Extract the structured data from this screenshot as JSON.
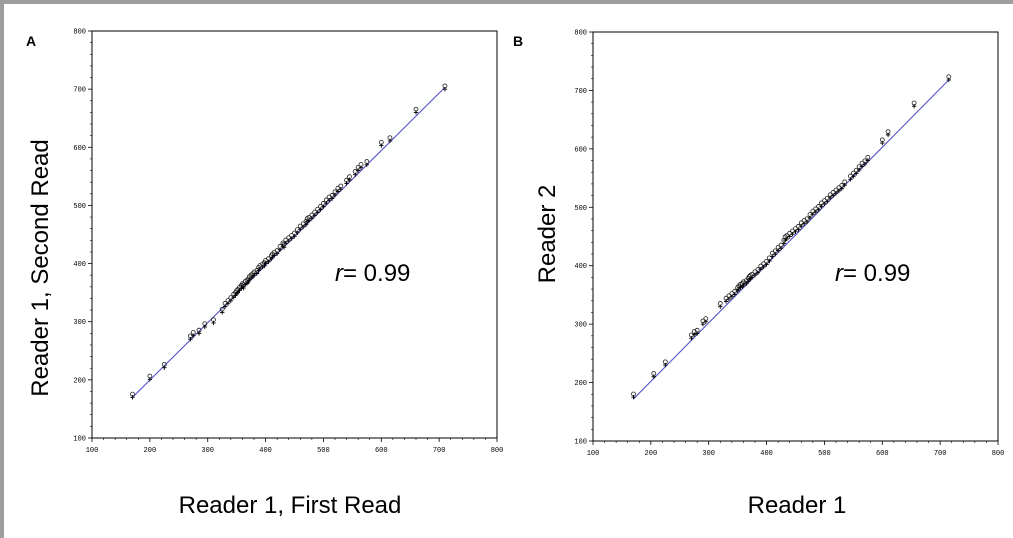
{
  "chart_data": [
    {
      "panel": "A",
      "type": "scatter",
      "xlabel": "Reader 1, First Read",
      "ylabel": "Reader 1, Second Read",
      "xlim": [
        100,
        800
      ],
      "ylim": [
        100,
        800
      ],
      "xticks": [
        100,
        200,
        300,
        400,
        500,
        600,
        700,
        800
      ],
      "yticks": [
        100,
        200,
        300,
        400,
        500,
        600,
        700,
        800
      ],
      "annotation": {
        "r_symbol": "r",
        "r_rest": "= 0.99"
      },
      "fit_line": {
        "x": [
          170,
          710
        ],
        "y": [
          170,
          703
        ]
      },
      "points": {
        "x": [
          170,
          200,
          225,
          270,
          275,
          285,
          295,
          310,
          325,
          330,
          335,
          340,
          345,
          348,
          350,
          352,
          355,
          358,
          360,
          362,
          365,
          368,
          370,
          372,
          375,
          378,
          380,
          385,
          388,
          390,
          395,
          398,
          400,
          405,
          410,
          412,
          415,
          420,
          425,
          430,
          432,
          435,
          440,
          445,
          450,
          455,
          460,
          465,
          470,
          472,
          475,
          480,
          485,
          490,
          495,
          500,
          505,
          510,
          515,
          520,
          525,
          530,
          540,
          545,
          555,
          560,
          565,
          575,
          600,
          615,
          660,
          710
        ],
        "y": [
          172,
          203,
          223,
          272,
          278,
          282,
          293,
          300,
          318,
          328,
          333,
          338,
          344,
          347,
          350,
          352,
          356,
          359,
          362,
          360,
          366,
          368,
          370,
          374,
          377,
          379,
          382,
          385,
          390,
          393,
          396,
          398,
          402,
          405,
          410,
          413,
          416,
          419,
          426,
          432,
          430,
          437,
          441,
          445,
          449,
          455,
          461,
          465,
          469,
          474,
          476,
          480,
          485,
          490,
          495,
          500,
          506,
          511,
          514,
          520,
          526,
          530,
          540,
          546,
          555,
          562,
          567,
          572,
          605,
          613,
          662,
          702
        ]
      }
    },
    {
      "panel": "B",
      "type": "scatter",
      "xlabel": "Reader 1",
      "ylabel": "Reader 2",
      "xlim": [
        100,
        800
      ],
      "ylim": [
        100,
        800
      ],
      "xticks": [
        100,
        200,
        300,
        400,
        500,
        600,
        700,
        800
      ],
      "yticks": [
        100,
        200,
        300,
        400,
        500,
        600,
        700,
        800
      ],
      "annotation": {
        "r_symbol": "r",
        "r_rest": "= 0.99"
      },
      "fit_line": {
        "x": [
          170,
          715
        ],
        "y": [
          172,
          718
        ]
      },
      "points": {
        "x": [
          170,
          205,
          225,
          270,
          275,
          280,
          290,
          295,
          320,
          330,
          335,
          340,
          345,
          350,
          352,
          355,
          358,
          360,
          365,
          368,
          370,
          372,
          375,
          380,
          385,
          390,
          395,
          400,
          405,
          410,
          415,
          420,
          425,
          430,
          432,
          435,
          440,
          445,
          450,
          455,
          460,
          465,
          470,
          475,
          480,
          485,
          490,
          495,
          500,
          505,
          510,
          515,
          520,
          525,
          530,
          535,
          545,
          550,
          555,
          560,
          565,
          570,
          575,
          600,
          610,
          655,
          715
        ],
        "y": [
          177,
          212,
          232,
          278,
          284,
          286,
          302,
          306,
          332,
          341,
          345,
          349,
          353,
          359,
          362,
          365,
          366,
          369,
          371,
          375,
          378,
          380,
          382,
          386,
          390,
          396,
          400,
          404,
          410,
          418,
          422,
          428,
          432,
          440,
          446,
          448,
          452,
          456,
          460,
          464,
          470,
          474,
          477,
          484,
          490,
          494,
          498,
          504,
          508,
          512,
          518,
          522,
          526,
          530,
          534,
          540,
          550,
          555,
          560,
          566,
          572,
          576,
          582,
          612,
          626,
          675,
          720
        ]
      }
    }
  ]
}
